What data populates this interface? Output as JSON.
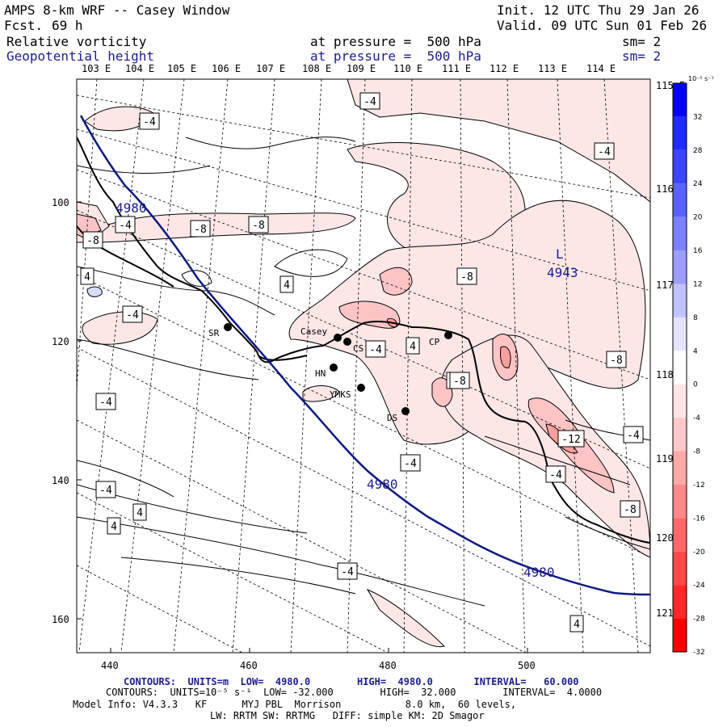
{
  "header": {
    "title": "AMPS 8-km WRF -- Casey Window",
    "fcst_label": "Fcst.",
    "fcst_value": "69 h",
    "init": "Init. 12 UTC Thu 29 Jan 26",
    "valid": "Valid. 09 UTC Sun 01 Feb 26",
    "field1_name": "Relative vorticity",
    "field1_level": "at pressure =  500 hPa",
    "field1_sm": "sm= 2",
    "field2_name": "Geopotential height",
    "field2_level": "at pressure =  500 hPa",
    "field2_sm": "sm= 2"
  },
  "lon_labels_top": [
    "103 E",
    "104 E",
    "105 E",
    "106 E",
    "107 E",
    "108 E",
    "109 E",
    "110 E",
    "111 E",
    "112 E",
    "113 E",
    "114 E"
  ],
  "lon_labels_right": [
    "115 E",
    "116 E",
    "117 E",
    "118 E",
    "119 E",
    "120 E",
    "121 E"
  ],
  "y_ticks": [
    "100",
    "120",
    "140",
    "160"
  ],
  "x_ticks": [
    "440",
    "460",
    "480",
    "500"
  ],
  "colorbar": {
    "units": "10⁻⁵ s⁻¹",
    "labels": [
      "32",
      "28",
      "24",
      "20",
      "16",
      "12",
      "8",
      "4",
      "0",
      "-4",
      "-8",
      "-12",
      "-16",
      "-20",
      "-24",
      "-28",
      "-32"
    ],
    "colors": [
      "#0000ff",
      "#1f2bff",
      "#3b45ff",
      "#5a62ff",
      "#7b80ff",
      "#9c9eff",
      "#c0c1ff",
      "#e4e4ff",
      "#ffffff",
      "#ffe6e6",
      "#ffc8c8",
      "#ffa8a8",
      "#ff8888",
      "#ff6868",
      "#ff4848",
      "#ff2828",
      "#ff0000"
    ]
  },
  "stations": {
    "sr": "SR",
    "casey": "Casey",
    "cs": "CS",
    "hn": "HN",
    "ymks": "YMKS",
    "ds": "DS",
    "cp": "CP"
  },
  "height_labels": [
    "4980",
    "4980",
    "4980"
  ],
  "low": {
    "letter": "L",
    "value": "4943"
  },
  "vort_labels": [
    "-4",
    "-4",
    "-4",
    "-4",
    "-8",
    "-8",
    "-8",
    "-4",
    "-4",
    "4",
    "4",
    "-8",
    "-8",
    "-4",
    "-4",
    "4",
    "-4",
    "-8",
    "-8",
    "-12",
    "-4",
    "-4",
    "-4",
    "-8",
    "-4",
    "-4",
    "4",
    "4",
    "-4",
    "4"
  ],
  "footer": {
    "c1": "CONTOURS:  UNITS=m  LOW=  4980.0        HIGH=  4980.0       INTERVAL=   60.000",
    "c2": "CONTOURS:  UNITS=10⁻⁵ s⁻¹  LOW= -32.000        HIGH=  32.000        INTERVAL=  4.0000",
    "m1": "Model Info: V4.3.3   KF      MYJ PBL  Morrison           8.0 km,  60 levels,",
    "m2": "LW: RRTM SW: RRTMG   DIFF: simple KM: 2D Smagor"
  }
}
